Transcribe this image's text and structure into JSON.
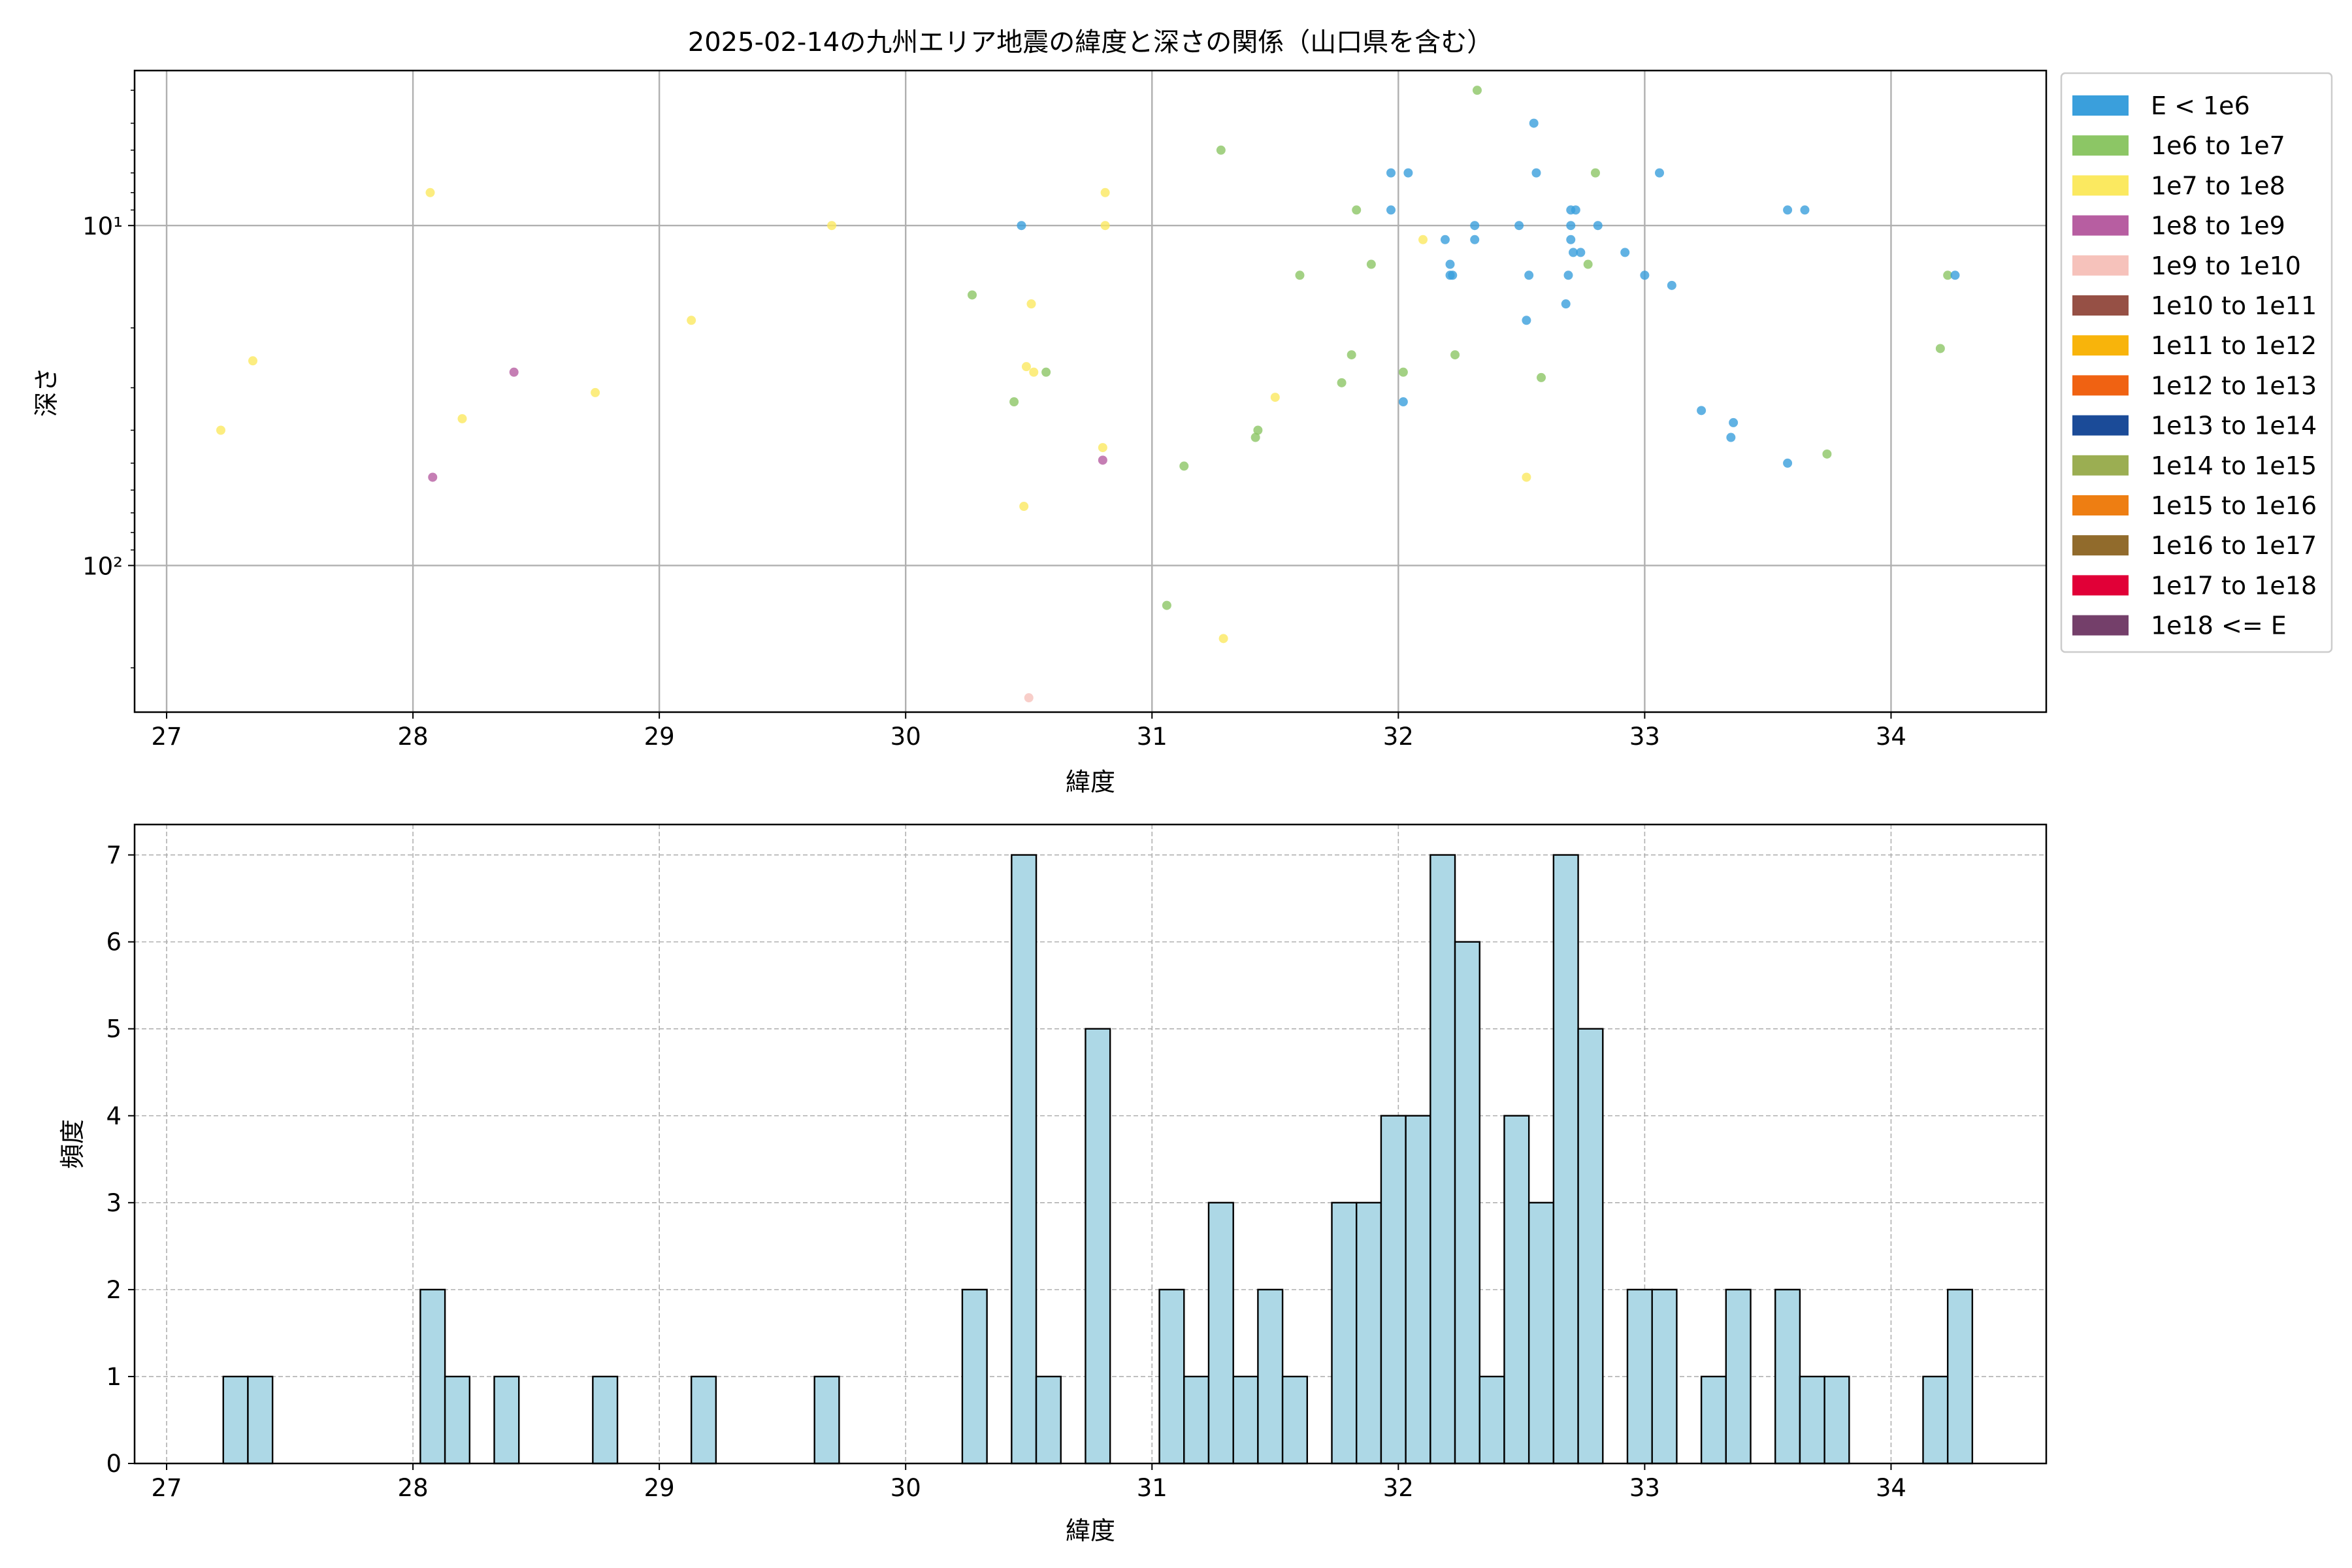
{
  "chart_data": [
    {
      "type": "scatter",
      "title": "2025-02-14の九州エリア地震の緯度と深さの関係（山口県を含む）",
      "xlabel": "緯度",
      "ylabel": "深さ",
      "x_ticks": [
        27,
        28,
        29,
        30,
        31,
        32,
        33,
        34
      ],
      "xlim": [
        26.87,
        34.63
      ],
      "y_scale": "log",
      "y_inverted": true,
      "ylim": [
        3.5,
        270
      ],
      "y_tick_labels": [
        {
          "value": 10,
          "label": "10¹"
        },
        {
          "value": 100,
          "label": "10²"
        }
      ],
      "grid": true,
      "legend_position": "outside right",
      "legend": [
        {
          "label": "E < 1e6",
          "color": "#3a9fdc"
        },
        {
          "label": "1e6 to 1e7",
          "color": "#8cc665"
        },
        {
          "label": "1e7 to 1e8",
          "color": "#fbe960"
        },
        {
          "label": "1e8 to 1e9",
          "color": "#b75ea1"
        },
        {
          "label": "1e9 to 1e10",
          "color": "#f6c2bb"
        },
        {
          "label": "1e10 to 1e11",
          "color": "#965045"
        },
        {
          "label": "1e11 to 1e12",
          "color": "#f8b40b"
        },
        {
          "label": "1e12 to 1e13",
          "color": "#f06212"
        },
        {
          "label": "1e13 to 1e14",
          "color": "#1b4b98"
        },
        {
          "label": "1e14 to 1e15",
          "color": "#9bae52"
        },
        {
          "label": "1e15 to 1e16",
          "color": "#ee7e12"
        },
        {
          "label": "1e16 to 1e17",
          "color": "#916b2c"
        },
        {
          "label": "1e17 to 1e18",
          "color": "#e10037"
        },
        {
          "label": "1e18 <= E",
          "color": "#743f6a"
        }
      ],
      "points": [
        {
          "x": 27.22,
          "y": 40,
          "c": 2
        },
        {
          "x": 27.35,
          "y": 25,
          "c": 2
        },
        {
          "x": 28.07,
          "y": 8,
          "c": 2
        },
        {
          "x": 28.2,
          "y": 37,
          "c": 2
        },
        {
          "x": 28.74,
          "y": 31,
          "c": 2
        },
        {
          "x": 29.13,
          "y": 19,
          "c": 2
        },
        {
          "x": 29.7,
          "y": 10,
          "c": 2
        },
        {
          "x": 30.48,
          "y": 67,
          "c": 2
        },
        {
          "x": 30.49,
          "y": 26,
          "c": 2
        },
        {
          "x": 30.51,
          "y": 17,
          "c": 2
        },
        {
          "x": 30.52,
          "y": 27,
          "c": 2
        },
        {
          "x": 30.8,
          "y": 45,
          "c": 2
        },
        {
          "x": 30.81,
          "y": 8,
          "c": 2
        },
        {
          "x": 30.81,
          "y": 10,
          "c": 2
        },
        {
          "x": 31.29,
          "y": 164,
          "c": 2
        },
        {
          "x": 31.5,
          "y": 32,
          "c": 2
        },
        {
          "x": 32.1,
          "y": 11,
          "c": 2
        },
        {
          "x": 32.52,
          "y": 55,
          "c": 2
        },
        {
          "x": 28.08,
          "y": 55,
          "c": 3
        },
        {
          "x": 28.41,
          "y": 27,
          "c": 3
        },
        {
          "x": 30.8,
          "y": 49,
          "c": 3
        },
        {
          "x": 30.5,
          "y": 245,
          "c": 4
        },
        {
          "x": 30.27,
          "y": 16,
          "c": 1
        },
        {
          "x": 30.44,
          "y": 33,
          "c": 1
        },
        {
          "x": 30.57,
          "y": 27,
          "c": 1
        },
        {
          "x": 31.06,
          "y": 131,
          "c": 1
        },
        {
          "x": 31.13,
          "y": 51,
          "c": 1
        },
        {
          "x": 31.28,
          "y": 6,
          "c": 1
        },
        {
          "x": 31.42,
          "y": 42,
          "c": 1
        },
        {
          "x": 31.43,
          "y": 40,
          "c": 1
        },
        {
          "x": 31.6,
          "y": 14,
          "c": 1
        },
        {
          "x": 31.77,
          "y": 29,
          "c": 1
        },
        {
          "x": 31.81,
          "y": 24,
          "c": 1
        },
        {
          "x": 31.83,
          "y": 9,
          "c": 1
        },
        {
          "x": 31.89,
          "y": 13,
          "c": 1
        },
        {
          "x": 32.02,
          "y": 27,
          "c": 1
        },
        {
          "x": 32.23,
          "y": 24,
          "c": 1
        },
        {
          "x": 32.32,
          "y": 4,
          "c": 1
        },
        {
          "x": 32.58,
          "y": 28,
          "c": 1
        },
        {
          "x": 32.77,
          "y": 13,
          "c": 1
        },
        {
          "x": 32.8,
          "y": 7,
          "c": 1
        },
        {
          "x": 33.74,
          "y": 47,
          "c": 1
        },
        {
          "x": 34.2,
          "y": 23,
          "c": 1
        },
        {
          "x": 34.23,
          "y": 14,
          "c": 1
        },
        {
          "x": 30.47,
          "y": 10,
          "c": 0
        },
        {
          "x": 31.97,
          "y": 7,
          "c": 0
        },
        {
          "x": 31.97,
          "y": 9,
          "c": 0
        },
        {
          "x": 32.04,
          "y": 7,
          "c": 0
        },
        {
          "x": 32.02,
          "y": 33,
          "c": 0
        },
        {
          "x": 32.19,
          "y": 11,
          "c": 0
        },
        {
          "x": 32.21,
          "y": 13,
          "c": 0
        },
        {
          "x": 32.21,
          "y": 14,
          "c": 0
        },
        {
          "x": 32.22,
          "y": 14,
          "c": 0
        },
        {
          "x": 32.31,
          "y": 10,
          "c": 0
        },
        {
          "x": 32.31,
          "y": 11,
          "c": 0
        },
        {
          "x": 32.49,
          "y": 10,
          "c": 0
        },
        {
          "x": 32.52,
          "y": 19,
          "c": 0
        },
        {
          "x": 32.53,
          "y": 14,
          "c": 0
        },
        {
          "x": 32.55,
          "y": 5,
          "c": 0
        },
        {
          "x": 32.56,
          "y": 7,
          "c": 0
        },
        {
          "x": 32.68,
          "y": 17,
          "c": 0
        },
        {
          "x": 32.69,
          "y": 14,
          "c": 0
        },
        {
          "x": 32.7,
          "y": 9,
          "c": 0
        },
        {
          "x": 32.7,
          "y": 10,
          "c": 0
        },
        {
          "x": 32.7,
          "y": 11,
          "c": 0
        },
        {
          "x": 32.71,
          "y": 12,
          "c": 0
        },
        {
          "x": 32.72,
          "y": 9,
          "c": 0
        },
        {
          "x": 32.74,
          "y": 12,
          "c": 0
        },
        {
          "x": 32.81,
          "y": 10,
          "c": 0
        },
        {
          "x": 32.92,
          "y": 12,
          "c": 0
        },
        {
          "x": 33.0,
          "y": 14,
          "c": 0
        },
        {
          "x": 33.06,
          "y": 7,
          "c": 0
        },
        {
          "x": 33.11,
          "y": 15,
          "c": 0
        },
        {
          "x": 33.23,
          "y": 35,
          "c": 0
        },
        {
          "x": 33.35,
          "y": 42,
          "c": 0
        },
        {
          "x": 33.36,
          "y": 38,
          "c": 0
        },
        {
          "x": 33.58,
          "y": 9,
          "c": 0
        },
        {
          "x": 33.58,
          "y": 50,
          "c": 0
        },
        {
          "x": 33.65,
          "y": 9,
          "c": 0
        },
        {
          "x": 34.26,
          "y": 14,
          "c": 0
        }
      ]
    },
    {
      "type": "bar",
      "title": "",
      "xlabel": "緯度",
      "ylabel": "頻度",
      "x_ticks": [
        27,
        28,
        29,
        30,
        31,
        32,
        33,
        34
      ],
      "xlim": [
        26.87,
        34.63
      ],
      "ylim": [
        0,
        7.35
      ],
      "y_ticks": [
        0,
        1,
        2,
        3,
        4,
        5,
        6,
        7
      ],
      "grid": true,
      "bar_color": "#add8e6",
      "bin_width": 0.1,
      "bins": [
        {
          "x": 27.23,
          "v": 1
        },
        {
          "x": 27.33,
          "v": 1
        },
        {
          "x": 28.03,
          "v": 2
        },
        {
          "x": 28.13,
          "v": 1
        },
        {
          "x": 28.33,
          "v": 1
        },
        {
          "x": 28.73,
          "v": 1
        },
        {
          "x": 29.13,
          "v": 1
        },
        {
          "x": 29.63,
          "v": 1
        },
        {
          "x": 30.23,
          "v": 2
        },
        {
          "x": 30.43,
          "v": 7
        },
        {
          "x": 30.53,
          "v": 1
        },
        {
          "x": 30.73,
          "v": 5
        },
        {
          "x": 31.03,
          "v": 2
        },
        {
          "x": 31.13,
          "v": 1
        },
        {
          "x": 31.23,
          "v": 3
        },
        {
          "x": 31.33,
          "v": 1
        },
        {
          "x": 31.43,
          "v": 2
        },
        {
          "x": 31.53,
          "v": 1
        },
        {
          "x": 31.73,
          "v": 3
        },
        {
          "x": 31.83,
          "v": 3
        },
        {
          "x": 31.93,
          "v": 4
        },
        {
          "x": 32.03,
          "v": 4
        },
        {
          "x": 32.13,
          "v": 7
        },
        {
          "x": 32.23,
          "v": 6
        },
        {
          "x": 32.33,
          "v": 1
        },
        {
          "x": 32.43,
          "v": 4
        },
        {
          "x": 32.53,
          "v": 3
        },
        {
          "x": 32.63,
          "v": 7
        },
        {
          "x": 32.73,
          "v": 5
        },
        {
          "x": 32.93,
          "v": 2
        },
        {
          "x": 33.03,
          "v": 2
        },
        {
          "x": 33.23,
          "v": 1
        },
        {
          "x": 33.33,
          "v": 2
        },
        {
          "x": 33.53,
          "v": 2
        },
        {
          "x": 33.63,
          "v": 1
        },
        {
          "x": 33.73,
          "v": 1
        },
        {
          "x": 34.13,
          "v": 1
        },
        {
          "x": 34.23,
          "v": 2
        }
      ]
    }
  ]
}
